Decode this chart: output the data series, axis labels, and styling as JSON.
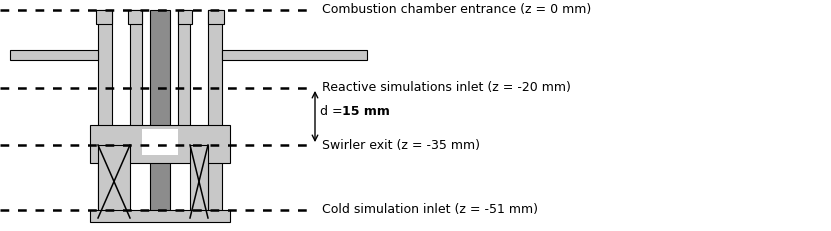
{
  "fig_width": 8.31,
  "fig_height": 2.31,
  "dpi": 100,
  "bg_color": "#ffffff",
  "gray_light": "#c8c8c8",
  "gray_dark": "#8c8c8c",
  "edge_color": "#000000",
  "lw": 0.8,
  "dotted_color": "#000000",
  "label_combustion": "Combustion chamber entrance (z = 0 mm)",
  "label_reactive": "Reactive simulations inlet (z = -20 mm)",
  "label_d": "d = ",
  "label_d_bold": "15 mm",
  "label_swirler": "Swirler exit (z = -35 mm)",
  "label_cold": "Cold simulation inlet (z = -51 mm)",
  "fontsize": 9.0
}
